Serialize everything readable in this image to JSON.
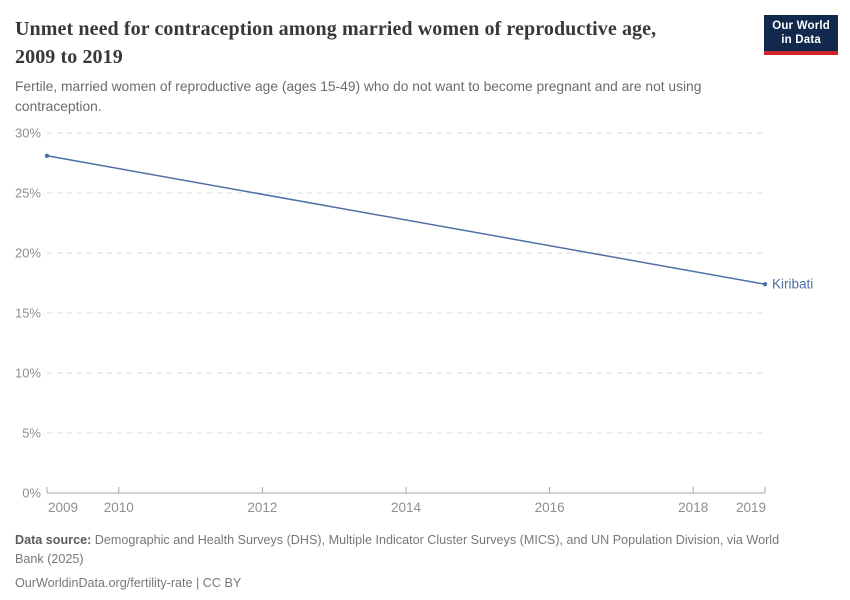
{
  "header": {
    "title": "Unmet need for contraception among married women of reproductive age, 2009 to 2019",
    "subtitle": "Fertile, married women of reproductive age (ages 15-49) who do not want to become pregnant and are not using contraception.",
    "logo": {
      "line1": "Our World",
      "line2": "in Data"
    }
  },
  "chart_data": {
    "type": "line",
    "title": "Unmet need for contraception among married women of reproductive age",
    "x": [
      2009,
      2019
    ],
    "series": [
      {
        "name": "Kiribati",
        "values": [
          28.1,
          17.4
        ],
        "color": "#4e6fa6"
      }
    ],
    "xlabel": "",
    "ylabel": "",
    "xlim": [
      2009,
      2019
    ],
    "ylim": [
      0,
      30
    ],
    "yticks": [
      0,
      5,
      10,
      15,
      20,
      25,
      30
    ],
    "ytick_suffix": "%",
    "xticks": [
      2009,
      2010,
      2012,
      2014,
      2016,
      2018,
      2019
    ],
    "grid": "horizontal-dashed",
    "legend_position": "end-of-line-label"
  },
  "footer": {
    "source_label": "Data source:",
    "source_text": "Demographic and Health Surveys (DHS), Multiple Indicator Cluster Surveys (MICS), and UN Population Division, via World Bank (2025)",
    "license_text": "OurWorldinData.org/fertility-rate | CC BY"
  },
  "colors": {
    "series_line": "#4e6fa6",
    "gridline": "#dadada",
    "axis_line": "#a8a8a8",
    "tick_label": "#8f8f8f",
    "title_text": "#383838",
    "subtitle_text": "#6b6b6b",
    "footer_text": "#787878",
    "logo_background": "#10294c",
    "logo_accent": "#d0242c"
  }
}
